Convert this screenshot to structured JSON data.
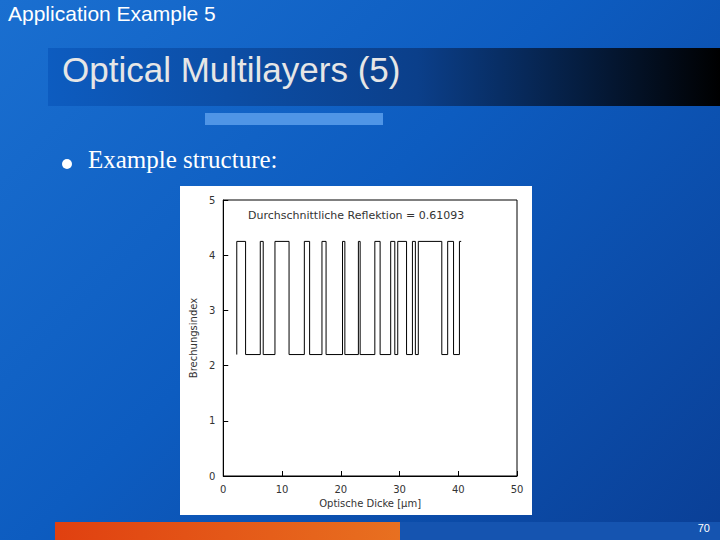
{
  "slide": {
    "header": "Application Example 5",
    "title": "Optical Multilayers (5)",
    "bullet": "Example structure:",
    "page_number": "70"
  },
  "chart_data": {
    "type": "step",
    "annotation": "Durchschnittliche Reflektion = 0.61093",
    "x_label": "Optische Dicke [µm]",
    "y_label": "Brechungsindex",
    "x": [
      2.3,
      3.8,
      6.3,
      6.8,
      8.8,
      11.2,
      13.8,
      14.7,
      16.8,
      17.5,
      20.3,
      20.7,
      23.0,
      23.3,
      25.8,
      26.7,
      28.5,
      29.2,
      29.7,
      31.2,
      32.2,
      32.7,
      33.2,
      37.2,
      38.2,
      39.2,
      40.2,
      40.5
    ],
    "values": [
      2.2,
      4.25,
      2.2,
      4.25,
      2.2,
      4.25,
      2.2,
      4.25,
      2.2,
      4.25,
      2.2,
      4.25,
      2.2,
      4.25,
      2.2,
      4.25,
      2.2,
      4.25,
      2.2,
      4.25,
      2.2,
      4.25,
      2.2,
      4.25,
      2.2,
      4.25,
      2.2,
      4.25
    ],
    "color": "#000000",
    "xlim": [
      0,
      50
    ],
    "xticks": [
      0,
      10,
      20,
      30,
      40,
      50
    ],
    "ylim": [
      0,
      5
    ],
    "yticks": [
      0,
      1,
      2,
      3,
      4,
      5
    ],
    "grid": false
  }
}
